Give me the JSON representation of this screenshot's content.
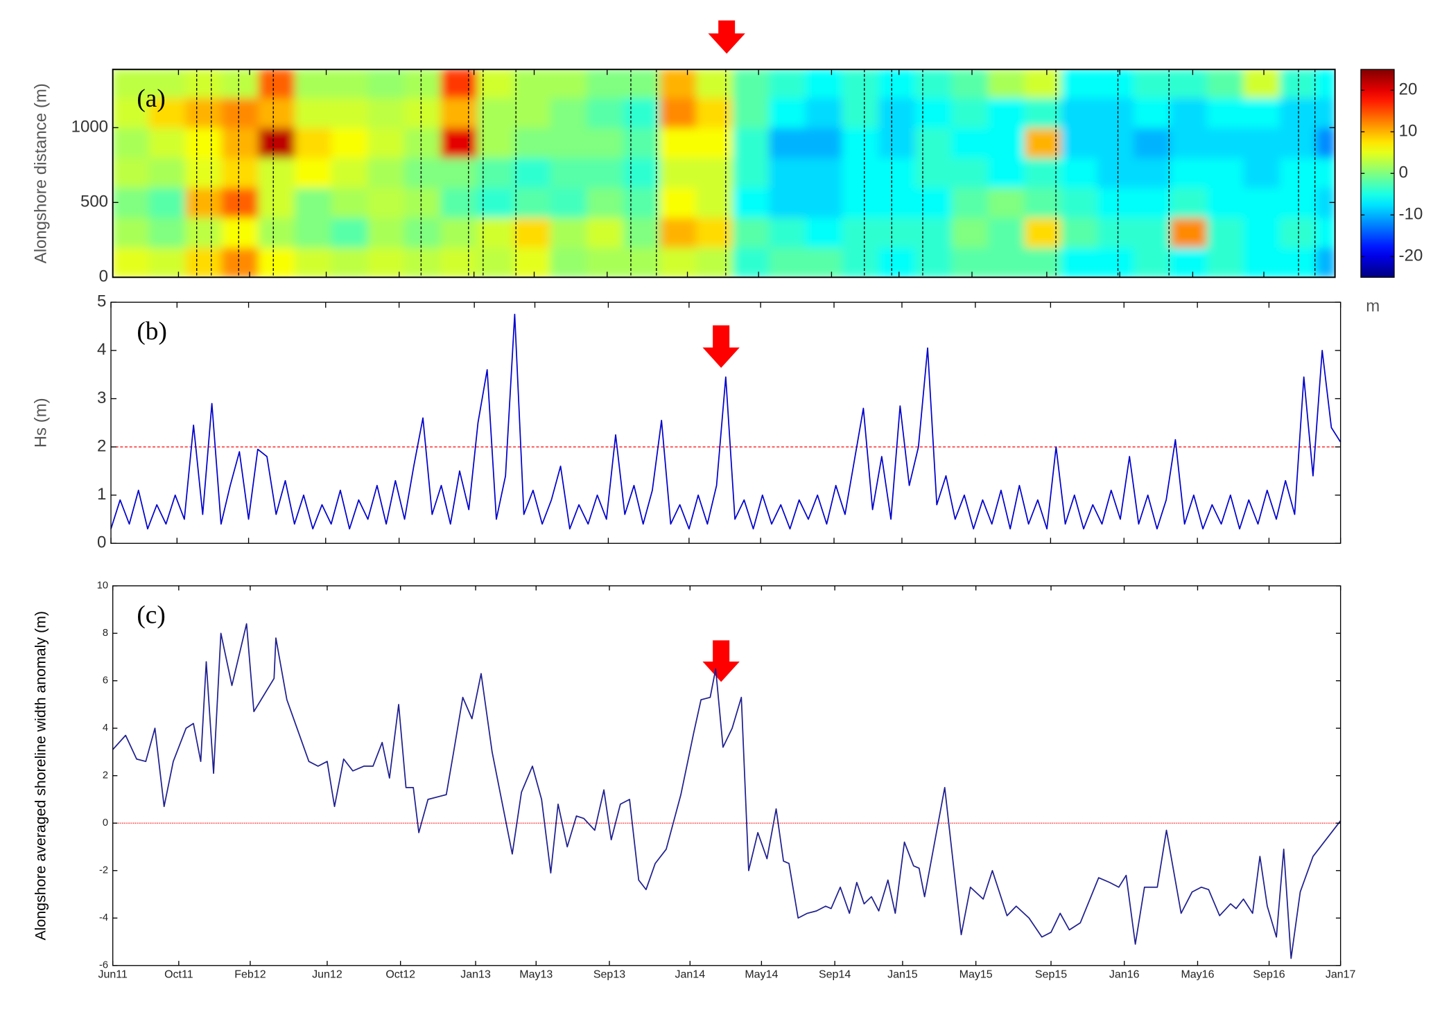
{
  "chart_data": [
    {
      "type": "heatmap",
      "panel_label": "(a)",
      "ylabel": "Alongshore distance (m)",
      "xlim": [
        0,
        67
      ],
      "xticks": [
        0,
        3.6,
        7.5,
        11.7,
        15.7,
        19.8,
        23.1,
        27.1,
        31.5,
        35.4,
        39.4,
        43.1,
        47.1,
        51.2,
        55.2,
        59.2,
        63.1,
        67
      ],
      "ylim": [
        0,
        1389
      ],
      "yticks": [
        0,
        500,
        1000
      ],
      "colormap": "jet",
      "x_edges": [
        0,
        2,
        4,
        6,
        8,
        10,
        12,
        14,
        16,
        18,
        20,
        22,
        24,
        26,
        28,
        30,
        32,
        34,
        36,
        38,
        40,
        42,
        44,
        46,
        48,
        50,
        52,
        54,
        56,
        58,
        60,
        62,
        64,
        66,
        67
      ],
      "y_edges": [
        0,
        200,
        400,
        600,
        800,
        1000,
        1200,
        1389
      ],
      "z": [
        [
          5,
          2,
          0,
          3,
          2,
          4,
          3
        ],
        [
          4,
          0,
          -2,
          2,
          4,
          8,
          3
        ],
        [
          8,
          3,
          10,
          5,
          6,
          10,
          4
        ],
        [
          12,
          6,
          14,
          8,
          10,
          12,
          3
        ],
        [
          6,
          2,
          4,
          4,
          22,
          10,
          14
        ],
        [
          4,
          0,
          0,
          6,
          8,
          4,
          2
        ],
        [
          3,
          -2,
          2,
          4,
          6,
          4,
          2
        ],
        [
          4,
          2,
          3,
          2,
          4,
          3,
          1
        ],
        [
          3,
          0,
          2,
          0,
          2,
          4,
          2
        ],
        [
          4,
          2,
          -2,
          0,
          20,
          10,
          16
        ],
        [
          3,
          4,
          -4,
          -2,
          2,
          2,
          4
        ],
        [
          5,
          8,
          -2,
          -4,
          0,
          2,
          2
        ],
        [
          1,
          2,
          -3,
          -2,
          0,
          0,
          2
        ],
        [
          2,
          4,
          0,
          -2,
          0,
          -2,
          0
        ],
        [
          2,
          0,
          -2,
          -4,
          -2,
          -4,
          0
        ],
        [
          4,
          10,
          6,
          4,
          6,
          12,
          10
        ],
        [
          3,
          8,
          4,
          4,
          6,
          8,
          4
        ],
        [
          -4,
          -2,
          -6,
          -4,
          -4,
          -2,
          -2
        ],
        [
          -2,
          -4,
          -8,
          -8,
          -10,
          -6,
          -4
        ],
        [
          -2,
          -6,
          -8,
          -8,
          -10,
          -8,
          -6
        ],
        [
          -4,
          -4,
          -6,
          -6,
          -6,
          -4,
          -4
        ],
        [
          -6,
          -4,
          -6,
          -6,
          -8,
          -8,
          -6
        ],
        [
          -4,
          -4,
          -6,
          -4,
          -4,
          -6,
          -4
        ],
        [
          -2,
          0,
          -2,
          -4,
          -6,
          -4,
          -2
        ],
        [
          -2,
          -2,
          0,
          -6,
          -6,
          -6,
          2
        ],
        [
          -2,
          8,
          -2,
          -4,
          10,
          -4,
          4
        ],
        [
          -6,
          -2,
          -4,
          -6,
          -8,
          -8,
          -6
        ],
        [
          -6,
          -4,
          -6,
          -8,
          -8,
          -8,
          -6
        ],
        [
          -4,
          -4,
          -6,
          -8,
          -10,
          -6,
          -4
        ],
        [
          -6,
          12,
          -4,
          -6,
          -8,
          -8,
          -4
        ],
        [
          -4,
          -4,
          -6,
          -6,
          -8,
          -6,
          -2
        ],
        [
          -6,
          -6,
          -6,
          -8,
          -8,
          -6,
          4
        ],
        [
          -6,
          -4,
          -6,
          -6,
          -8,
          -8,
          -4
        ],
        [
          -10,
          -6,
          -8,
          -6,
          -12,
          -8,
          -6
        ]
      ],
      "event_x": [
        4.6,
        5.4,
        6.9,
        8.8,
        16.9,
        19.5,
        20.3,
        22.1,
        28.4,
        29.8,
        33.6,
        41.2,
        42.7,
        44.4,
        51.7,
        55.1,
        57.9,
        65.0,
        65.9
      ],
      "colorbar": {
        "lim": [
          -25,
          25
        ],
        "ticks": [
          20,
          10,
          0,
          -10,
          -20
        ],
        "label": "m"
      }
    },
    {
      "type": "line",
      "panel_label": "(b)",
      "ylabel": "Hs (m)",
      "color": "#0000cc",
      "xlim": [
        0,
        67
      ],
      "xticks": [
        0,
        3.6,
        7.5,
        11.7,
        15.7,
        19.8,
        23.1,
        27.1,
        31.5,
        35.4,
        39.4,
        43.1,
        47.1,
        51.2,
        55.2,
        59.2,
        63.1,
        67
      ],
      "ylim": [
        0,
        5
      ],
      "yticks": [
        0,
        1,
        2,
        3,
        4,
        5
      ],
      "reference_line": 2,
      "reference_color": "#ff0000",
      "x": [
        0,
        0.5,
        1,
        1.5,
        2,
        2.5,
        3,
        3.5,
        4,
        4.5,
        5,
        5.5,
        6,
        6.5,
        7,
        7.5,
        8,
        8.5,
        9,
        9.5,
        10,
        10.5,
        11,
        11.5,
        12,
        12.5,
        13,
        13.5,
        14,
        14.5,
        15,
        15.5,
        16,
        16.5,
        17,
        17.5,
        18,
        18.5,
        19,
        19.5,
        20,
        20.5,
        21,
        21.5,
        22,
        22.5,
        23,
        23.5,
        24,
        24.5,
        25,
        25.5,
        26,
        26.5,
        27,
        27.5,
        28,
        28.5,
        29,
        29.5,
        30,
        30.5,
        31,
        31.5,
        32,
        32.5,
        33,
        33.5,
        34,
        34.5,
        35,
        35.5,
        36,
        36.5,
        37,
        37.5,
        38,
        38.5,
        39,
        39.5,
        40,
        40.5,
        41,
        41.5,
        42,
        42.5,
        43,
        43.5,
        44,
        44.5,
        45,
        45.5,
        46,
        46.5,
        47,
        47.5,
        48,
        48.5,
        49,
        49.5,
        50,
        50.5,
        51,
        51.5,
        52,
        52.5,
        53,
        53.5,
        54,
        54.5,
        55,
        55.5,
        56,
        56.5,
        57,
        57.5,
        58,
        58.5,
        59,
        59.5,
        60,
        60.5,
        61,
        61.5,
        62,
        62.5,
        63,
        63.5,
        64,
        64.5,
        65,
        65.5,
        66,
        66.5,
        67
      ],
      "values": [
        0.3,
        0.9,
        0.4,
        1.1,
        0.3,
        0.8,
        0.4,
        1.0,
        0.5,
        2.45,
        0.6,
        2.9,
        0.4,
        1.2,
        1.9,
        0.5,
        1.95,
        1.8,
        0.6,
        1.3,
        0.4,
        1.0,
        0.3,
        0.8,
        0.4,
        1.1,
        0.3,
        0.9,
        0.5,
        1.2,
        0.4,
        1.3,
        0.5,
        1.6,
        2.6,
        0.6,
        1.2,
        0.4,
        1.5,
        0.7,
        2.5,
        3.6,
        0.5,
        1.4,
        4.75,
        0.6,
        1.1,
        0.4,
        0.9,
        1.6,
        0.3,
        0.8,
        0.4,
        1.0,
        0.5,
        2.25,
        0.6,
        1.2,
        0.4,
        1.1,
        2.55,
        0.4,
        0.8,
        0.3,
        1.0,
        0.4,
        1.2,
        3.45,
        0.5,
        0.9,
        0.3,
        1.0,
        0.4,
        0.8,
        0.3,
        0.9,
        0.5,
        1.0,
        0.4,
        1.2,
        0.6,
        1.7,
        2.8,
        0.7,
        1.8,
        0.5,
        2.85,
        1.2,
        2.0,
        4.05,
        0.8,
        1.4,
        0.5,
        1.0,
        0.3,
        0.9,
        0.4,
        1.1,
        0.3,
        1.2,
        0.4,
        0.9,
        0.3,
        2.0,
        0.4,
        1.0,
        0.3,
        0.8,
        0.4,
        1.1,
        0.5,
        1.8,
        0.4,
        1.0,
        0.3,
        0.9,
        2.15,
        0.4,
        1.0,
        0.3,
        0.8,
        0.4,
        1.0,
        0.3,
        0.9,
        0.4,
        1.1,
        0.5,
        1.3,
        0.6,
        3.45,
        1.4,
        4.0,
        2.4,
        2.1
      ]
    },
    {
      "type": "line",
      "panel_label": "(c)",
      "ylabel": "Alongshore averaged shoreline width anomaly (m)",
      "color": "#1f1f8f",
      "xlim": [
        0,
        67
      ],
      "xticks": [
        {
          "value": 0,
          "label": "Jun11"
        },
        {
          "value": 3.6,
          "label": "Oct11"
        },
        {
          "value": 7.5,
          "label": "Feb12"
        },
        {
          "value": 11.7,
          "label": "Jun12"
        },
        {
          "value": 15.7,
          "label": "Oct12"
        },
        {
          "value": 19.8,
          "label": "Jan13"
        },
        {
          "value": 23.1,
          "label": "May13"
        },
        {
          "value": 27.1,
          "label": "Sep13"
        },
        {
          "value": 31.5,
          "label": "Jan14"
        },
        {
          "value": 35.4,
          "label": "May14"
        },
        {
          "value": 39.4,
          "label": "Sep14"
        },
        {
          "value": 43.1,
          "label": "Jan15"
        },
        {
          "value": 47.1,
          "label": "May15"
        },
        {
          "value": 51.2,
          "label": "Sep15"
        },
        {
          "value": 55.2,
          "label": "Jan16"
        },
        {
          "value": 59.2,
          "label": "May16"
        },
        {
          "value": 63.1,
          "label": "Sep16"
        },
        {
          "value": 67,
          "label": "Jan17"
        }
      ],
      "ylim": [
        -6,
        10
      ],
      "yticks": [
        -6,
        -4,
        -2,
        0,
        2,
        4,
        6,
        8,
        10
      ],
      "reference_line": 0,
      "reference_color": "#ff0000",
      "x": [
        0,
        0.7,
        1.3,
        1.8,
        2.3,
        2.8,
        3.3,
        4.0,
        4.4,
        4.8,
        5.1,
        5.5,
        5.9,
        6.5,
        7.3,
        7.7,
        8.8,
        8.9,
        9.5,
        10.7,
        11.2,
        11.7,
        12.1,
        12.6,
        13.1,
        13.7,
        14.2,
        14.7,
        15.1,
        15.6,
        16.0,
        16.4,
        16.7,
        17.2,
        18.2,
        18.6,
        19.1,
        19.6,
        20.1,
        20.7,
        21.8,
        22.3,
        22.9,
        23.4,
        23.9,
        24.3,
        24.8,
        25.3,
        25.7,
        26.3,
        26.8,
        27.2,
        27.7,
        28.2,
        28.7,
        29.1,
        29.6,
        30.2,
        31.0,
        31.7,
        32.1,
        32.6,
        32.9,
        33.3,
        33.8,
        34.3,
        34.7,
        35.2,
        35.7,
        36.2,
        36.6,
        36.9,
        37.4,
        37.9,
        38.4,
        38.9,
        39.2,
        39.7,
        40.2,
        40.6,
        41.0,
        41.4,
        41.8,
        42.3,
        42.7,
        43.2,
        43.7,
        44.0,
        44.3,
        45.4,
        46.3,
        46.8,
        47.5,
        48.0,
        48.8,
        49.3,
        50.0,
        50.7,
        51.2,
        51.7,
        52.2,
        52.8,
        53.8,
        54.4,
        54.9,
        55.3,
        55.8,
        56.3,
        56.6,
        57.0,
        57.5,
        58.3,
        58.9,
        59.4,
        59.8,
        60.4,
        61.0,
        61.3,
        61.7,
        62.2,
        62.6,
        63.0,
        63.5,
        63.9,
        64.3,
        64.8,
        65.5,
        67.0
      ],
      "values": [
        3.1,
        3.7,
        2.7,
        2.6,
        4.0,
        0.7,
        2.6,
        4.0,
        4.2,
        2.6,
        6.8,
        2.1,
        8.0,
        5.8,
        8.4,
        4.7,
        6.1,
        7.8,
        5.2,
        2.6,
        2.4,
        2.6,
        0.7,
        2.7,
        2.2,
        2.4,
        2.4,
        3.4,
        1.9,
        5.0,
        1.5,
        1.5,
        -0.4,
        1.0,
        1.2,
        3.0,
        5.3,
        4.4,
        6.3,
        3.0,
        -1.3,
        1.3,
        2.4,
        1.0,
        -2.1,
        0.8,
        -1.0,
        0.3,
        0.2,
        -0.3,
        1.4,
        -0.7,
        0.8,
        1.0,
        -2.4,
        -2.8,
        -1.7,
        -1.1,
        1.2,
        3.8,
        5.2,
        5.3,
        6.5,
        3.2,
        4.0,
        5.3,
        -2.0,
        -0.4,
        -1.5,
        0.6,
        -1.6,
        -1.7,
        -4.0,
        -3.8,
        -3.7,
        -3.5,
        -3.6,
        -2.7,
        -3.8,
        -2.5,
        -3.4,
        -3.1,
        -3.7,
        -2.4,
        -3.8,
        -0.8,
        -1.8,
        -1.9,
        -3.1,
        1.5,
        -4.7,
        -2.7,
        -3.2,
        -2.0,
        -3.9,
        -3.5,
        -4.0,
        -4.8,
        -4.6,
        -3.8,
        -4.5,
        -4.2,
        -2.3,
        -2.5,
        -2.7,
        -2.2,
        -5.1,
        -2.7,
        -2.7,
        -2.7,
        -0.3,
        -3.8,
        -2.9,
        -2.7,
        -2.8,
        -3.9,
        -3.4,
        -3.6,
        -3.2,
        -3.8,
        -1.4,
        -3.5,
        -4.8,
        -1.1,
        -5.7,
        -2.9,
        -1.4,
        0.1
      ]
    }
  ]
}
